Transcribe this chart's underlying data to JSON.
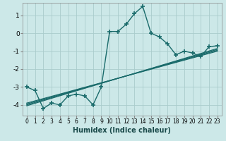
{
  "xlabel": "Humidex (Indice chaleur)",
  "background_color": "#cce8e8",
  "grid_color": "#aacccc",
  "line_color": "#1a6b6b",
  "xlim": [
    -0.5,
    23.5
  ],
  "ylim": [
    -4.6,
    1.7
  ],
  "yticks": [
    -4,
    -3,
    -2,
    -1,
    0,
    1
  ],
  "xticks": [
    0,
    1,
    2,
    3,
    4,
    5,
    6,
    7,
    8,
    9,
    10,
    11,
    12,
    13,
    14,
    15,
    16,
    17,
    18,
    19,
    20,
    21,
    22,
    23
  ],
  "main_x": [
    0,
    1,
    2,
    3,
    4,
    5,
    6,
    7,
    8,
    9,
    10,
    11,
    12,
    13,
    14,
    15,
    16,
    17,
    18,
    19,
    20,
    21,
    22,
    23
  ],
  "main_y": [
    -3.0,
    -3.2,
    -4.2,
    -3.9,
    -4.0,
    -3.5,
    -3.4,
    -3.5,
    -4.0,
    -3.0,
    0.1,
    0.1,
    0.5,
    1.1,
    1.5,
    0.0,
    -0.2,
    -0.6,
    -1.2,
    -1.0,
    -1.1,
    -1.3,
    -0.75,
    -0.7
  ],
  "reg_lines": [
    {
      "x": [
        0,
        23
      ],
      "y": [
        -4.05,
        -0.85
      ]
    },
    {
      "x": [
        0,
        23
      ],
      "y": [
        -4.0,
        -0.9
      ]
    },
    {
      "x": [
        0,
        23
      ],
      "y": [
        -3.95,
        -0.95
      ]
    },
    {
      "x": [
        0,
        23
      ],
      "y": [
        -3.9,
        -1.0
      ]
    }
  ]
}
